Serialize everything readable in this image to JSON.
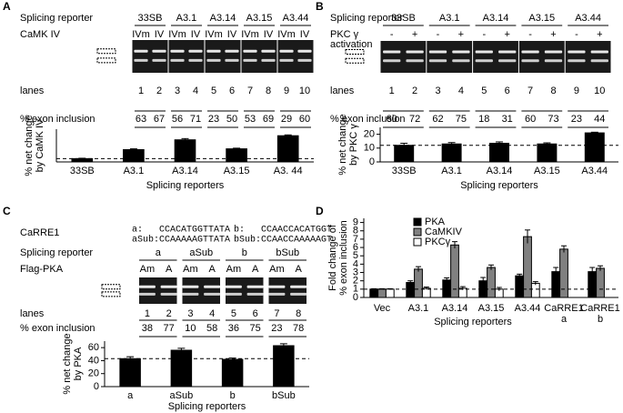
{
  "gels": [
    {
      "reporter_label": "Splicing reporter",
      "reporters": [
        "33SB",
        "A3.1",
        "A3.14",
        "A3.15",
        "A3.44"
      ],
      "treatment_label": [
        "CaMK IV"
      ],
      "treatments": [
        "IVm",
        "IV",
        "IVm",
        "IV",
        "IVm",
        "IV",
        "IVm",
        "IV",
        "IVm",
        "IV"
      ],
      "lanes_label": "lanes",
      "lanes": [
        1,
        2,
        3,
        4,
        5,
        6,
        7,
        8,
        9,
        10
      ],
      "inclusion_label": "% exon inclusion",
      "inclusion": [
        63,
        67,
        56,
        71,
        23,
        50,
        53,
        69,
        29,
        60
      ]
    },
    {
      "reporter_label": "Splicing reporter",
      "reporters": [
        "33SB",
        "A3.1",
        "A3.14",
        "A3.15",
        "A3.44"
      ],
      "treatment_label": [
        "PKC γ",
        "activation"
      ],
      "treatments": [
        "-",
        "+",
        "-",
        "+",
        "-",
        "+",
        "-",
        "+",
        "-",
        "+"
      ],
      "lanes_label": "lanes",
      "lanes": [
        1,
        2,
        3,
        4,
        5,
        6,
        7,
        8,
        9,
        10
      ],
      "inclusion_label": "% exon inclusion",
      "inclusion": [
        60,
        72,
        62,
        75,
        18,
        31,
        60,
        73,
        23,
        44
      ]
    },
    {
      "sequence_label": "CaRRE1",
      "sequences": [
        "a:",
        "CCACATGGTTATA",
        "aSub:",
        "CCAAAAAGTTATA",
        "b:",
        "CCAACCACATGGT",
        "bSub:",
        "CCAACCAAAAAGT"
      ],
      "reporter_label": "Splicing reporter",
      "reporters": [
        "a",
        "aSub",
        "b",
        "bSub"
      ],
      "treatment_label": [
        "Flag-PKA"
      ],
      "treatments": [
        "Am",
        "A",
        "Am",
        "A",
        "Am",
        "A",
        "Am",
        "A"
      ],
      "lanes_label": "lanes",
      "lanes": [
        1,
        2,
        3,
        4,
        5,
        6,
        7,
        8
      ],
      "inclusion_label": "% exon inclusion",
      "inclusion": [
        38,
        77,
        10,
        58,
        36,
        75,
        23,
        78
      ]
    }
  ],
  "chart_data": [
    {
      "type": "bar",
      "panel": "A",
      "categories": [
        "33SB",
        "A3.1",
        "A3.14",
        "A3.15",
        "A3. 44"
      ],
      "values": [
        4,
        15,
        27,
        16,
        32
      ],
      "errors": [
        0.5,
        1,
        1.5,
        0.8,
        1
      ],
      "color": "#000000",
      "ylim": [
        0,
        40
      ],
      "ref_line": 4,
      "y_label": [
        "% net change",
        "by CaMK IV"
      ],
      "x_label": "Splicing reporters"
    },
    {
      "type": "bar",
      "panel": "B",
      "categories": [
        "33SB",
        "A3.1",
        "A3.14",
        "A3.15",
        "A3.44"
      ],
      "values": [
        12,
        13,
        13.5,
        13,
        21
      ],
      "errors": [
        1.5,
        1,
        1,
        0.8,
        0.5
      ],
      "color": "#000000",
      "ylim": [
        0,
        25
      ],
      "yticks": [
        0,
        10,
        20
      ],
      "ref_line": 12,
      "y_label": [
        "% net change",
        "by PKC γ"
      ],
      "x_label": "Splicing reporters"
    },
    {
      "type": "bar",
      "panel": "C",
      "categories": [
        "a",
        "aSub",
        "b",
        "bSub"
      ],
      "values": [
        43,
        56,
        42,
        63
      ],
      "errors": [
        3,
        3,
        2,
        3
      ],
      "color": "#000000",
      "ylim": [
        0,
        70
      ],
      "yticks": [
        0,
        20,
        40,
        60
      ],
      "ref_line": 43,
      "y_label": [
        "% net change",
        "by PKA"
      ],
      "x_label": "Splicing reporters"
    },
    {
      "type": "grouped_bar",
      "panel": "D",
      "categories": [
        [
          "Vec"
        ],
        [
          "A3.1"
        ],
        [
          "A3.14"
        ],
        [
          "A3.15"
        ],
        [
          "A3.44"
        ],
        [
          "CaRRE1",
          "a"
        ],
        [
          "CaRRE1",
          "b"
        ]
      ],
      "series": [
        {
          "name": "PKA",
          "color": "#000000",
          "values": [
            1,
            1.8,
            2.1,
            2.0,
            2.6,
            3.1,
            3.1
          ],
          "errors": [
            0.05,
            0.2,
            0.25,
            0.4,
            0.2,
            0.5,
            0.5
          ]
        },
        {
          "name": "CaMKIV",
          "color": "#808080",
          "values": [
            1,
            3.4,
            6.3,
            3.6,
            7.3,
            5.8,
            3.5
          ],
          "errors": [
            0.05,
            0.3,
            0.4,
            0.3,
            0.8,
            0.4,
            0.3
          ]
        },
        {
          "name": "PKCγ",
          "color": "#ffffff",
          "values": [
            1,
            1.1,
            1.1,
            1.0,
            1.7,
            null,
            null
          ],
          "errors": [
            0.05,
            0.15,
            0.2,
            0.2,
            0.2,
            null,
            null
          ]
        }
      ],
      "ylim": [
        0,
        9.5
      ],
      "yticks": [
        0,
        1,
        2,
        3,
        4,
        5,
        6,
        7,
        8,
        9
      ],
      "ref_line": 1,
      "legend": "top-left",
      "y_label": [
        "Fold change of",
        "% exon inclusion"
      ],
      "x_label": "Splicing reporters"
    }
  ]
}
